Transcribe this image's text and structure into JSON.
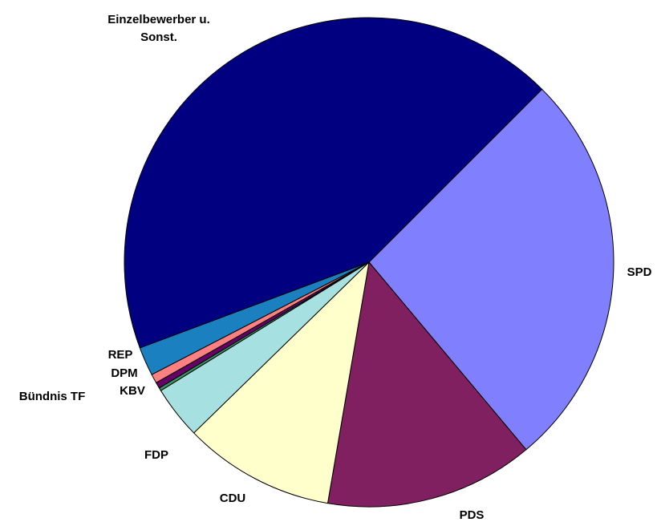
{
  "chart_data": {
    "type": "pie",
    "categories": [
      "SPD",
      "PDS",
      "CDU",
      "FDP",
      "Bündnis TF",
      "KBV",
      "DPM",
      "REP",
      "Einzelbewerber u. Sonst."
    ],
    "values": [
      26.4,
      13.8,
      10.0,
      3.5,
      0.2,
      0.4,
      0.6,
      1.9,
      43.2
    ],
    "colors": [
      "#8080ff",
      "#802060",
      "#ffffcc",
      "#a6e0e0",
      "#339966",
      "#660066",
      "#ff8080",
      "#1a80c0",
      "#000080"
    ]
  }
}
